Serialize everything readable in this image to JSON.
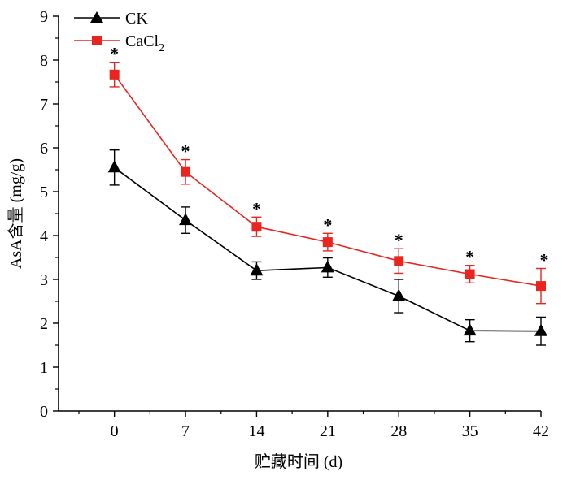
{
  "chart_data": {
    "type": "line",
    "xlabel": "贮藏时间 (d)",
    "ylabel": "AsA含量 (mg/g)",
    "x": [
      0,
      7,
      14,
      21,
      28,
      35,
      42
    ],
    "x_ticks": [
      "0",
      "7",
      "14",
      "21",
      "28",
      "35",
      "42"
    ],
    "y_ticks": [
      "0",
      "1",
      "2",
      "3",
      "4",
      "5",
      "6",
      "7",
      "8",
      "9"
    ],
    "xlim": [
      -5.5,
      42
    ],
    "ylim": [
      0,
      9
    ],
    "grid": false,
    "legend_position": "top-left",
    "series": [
      {
        "name": "CK",
        "marker": "triangle",
        "color": "#000000",
        "values": [
          5.55,
          4.35,
          3.2,
          3.27,
          2.62,
          1.83,
          1.82
        ],
        "errors": [
          0.4,
          0.3,
          0.2,
          0.22,
          0.38,
          0.25,
          0.32
        ]
      },
      {
        "name": "CaCl",
        "name_subscript": "2",
        "marker": "square",
        "color": "#e8251f",
        "values": [
          7.67,
          5.45,
          4.2,
          3.85,
          3.42,
          3.12,
          2.85
        ],
        "errors": [
          0.28,
          0.28,
          0.22,
          0.2,
          0.28,
          0.2,
          0.4
        ]
      }
    ],
    "annotations": [
      {
        "label": "*",
        "x": 0
      },
      {
        "label": "*",
        "x": 7
      },
      {
        "label": "*",
        "x": 14
      },
      {
        "label": "*",
        "x": 21
      },
      {
        "label": "*",
        "x": 28
      },
      {
        "label": "*",
        "x": 35
      },
      {
        "label": "*",
        "x": 42
      }
    ]
  }
}
